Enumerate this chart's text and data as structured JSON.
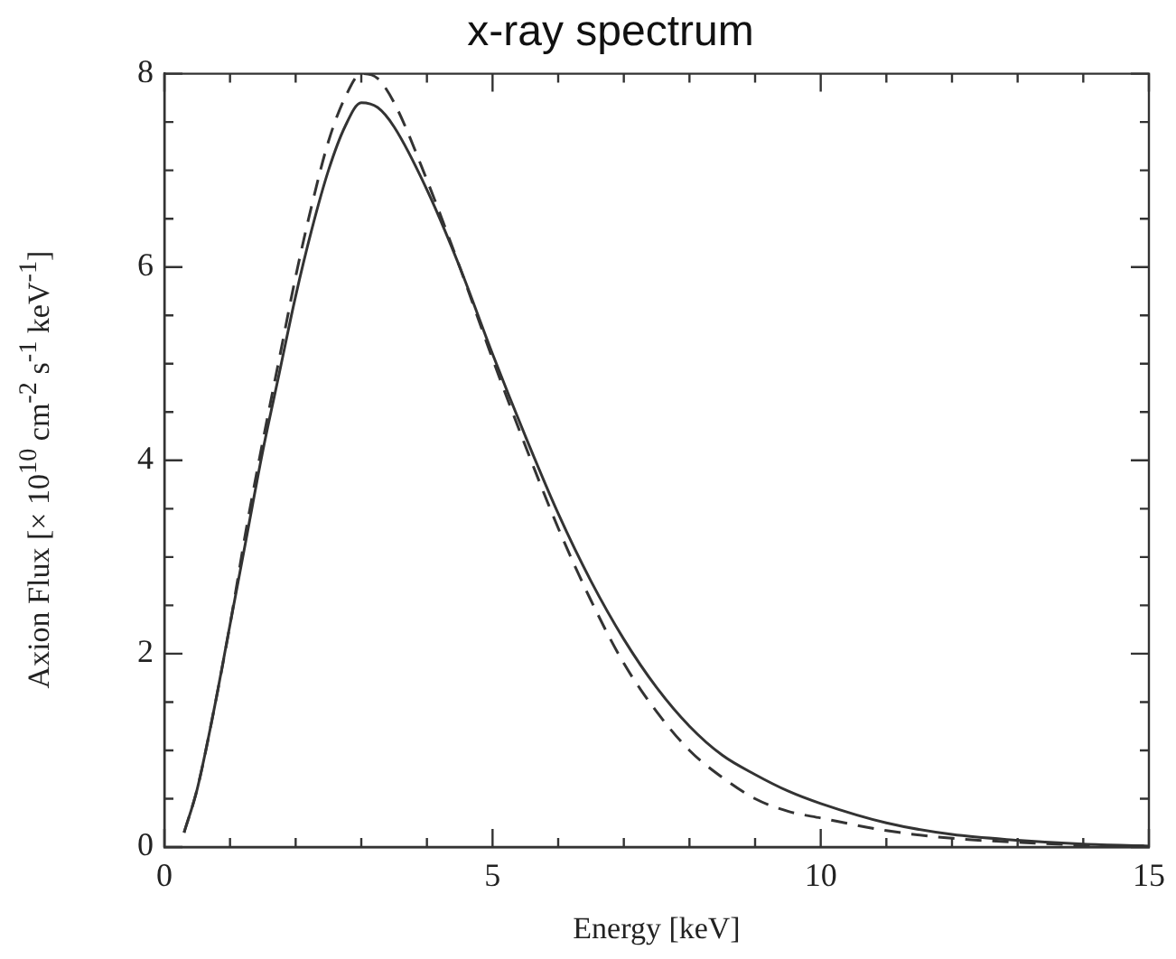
{
  "chart_data": {
    "type": "line",
    "title": "x-ray spectrum",
    "xlabel": "Energy [keV]",
    "ylabel": "Axion Flux [× 10$^{10}$ cm$^{-2}$ s$^{-1}$ keV$^{-1}$]",
    "xlim": [
      0,
      15
    ],
    "ylim": [
      0,
      8
    ],
    "xticks": [
      0,
      {
        "value": 1,
        "label": null
      },
      {
        "value": 2,
        "label": null
      },
      {
        "value": 3,
        "label": null
      },
      {
        "value": 4,
        "label": null
      },
      5,
      {
        "value": 6,
        "label": null
      },
      {
        "value": 7,
        "label": null
      },
      {
        "value": 8,
        "label": null
      },
      {
        "value": 9,
        "label": null
      },
      10,
      {
        "value": 11,
        "label": null
      },
      {
        "value": 12,
        "label": null
      },
      {
        "value": 13,
        "label": null
      },
      {
        "value": 14,
        "label": null
      },
      15
    ],
    "yticks": [
      0,
      {
        "value": 0.5,
        "label": null
      },
      {
        "value": 1,
        "label": null
      },
      {
        "value": 1.5,
        "label": null
      },
      2,
      {
        "value": 2.5,
        "label": null
      },
      {
        "value": 3,
        "label": null
      },
      {
        "value": 3.5,
        "label": null
      },
      4,
      {
        "value": 4.5,
        "label": null
      },
      {
        "value": 5,
        "label": null
      },
      {
        "value": 5.5,
        "label": null
      },
      6,
      {
        "value": 6.5,
        "label": null
      },
      {
        "value": 7,
        "label": null
      },
      {
        "value": 7.5,
        "label": null
      },
      8
    ],
    "grid": false,
    "legend": false,
    "marker": "none",
    "series": [
      {
        "color": "#333333",
        "line_style": "solid",
        "x": [
          0.3,
          0.5,
          0.75,
          1,
          1.25,
          1.5,
          1.75,
          2,
          2.25,
          2.5,
          2.75,
          3,
          3.25,
          3.5,
          4,
          4.5,
          5,
          5.5,
          6,
          6.5,
          7,
          7.5,
          8,
          8.5,
          9,
          9.5,
          10,
          11,
          12,
          13,
          14,
          15
        ],
        "values": [
          0.15,
          0.6,
          1.4,
          2.3,
          3.2,
          4.1,
          4.9,
          5.7,
          6.4,
          7.0,
          7.45,
          7.7,
          7.65,
          7.45,
          6.8,
          6.0,
          5.1,
          4.25,
          3.45,
          2.75,
          2.15,
          1.65,
          1.25,
          0.95,
          0.75,
          0.58,
          0.45,
          0.25,
          0.13,
          0.07,
          0.03,
          0.01
        ]
      },
      {
        "color": "#333333",
        "line_style": "dashed",
        "x": [
          0.3,
          0.5,
          0.75,
          1,
          1.25,
          1.5,
          1.75,
          2,
          2.25,
          2.5,
          2.75,
          3,
          3.25,
          3.5,
          4,
          4.5,
          5,
          5.5,
          6,
          6.5,
          7,
          7.5,
          8,
          8.5,
          9,
          9.5,
          10,
          11,
          12,
          13,
          14,
          15
        ],
        "values": [
          0.15,
          0.6,
          1.4,
          2.3,
          3.3,
          4.2,
          5.05,
          5.9,
          6.65,
          7.3,
          7.75,
          8.0,
          7.95,
          7.7,
          6.9,
          6.0,
          5.05,
          4.15,
          3.3,
          2.55,
          1.9,
          1.4,
          1.0,
          0.72,
          0.5,
          0.37,
          0.3,
          0.17,
          0.09,
          0.05,
          0.02,
          0.01
        ]
      }
    ]
  }
}
